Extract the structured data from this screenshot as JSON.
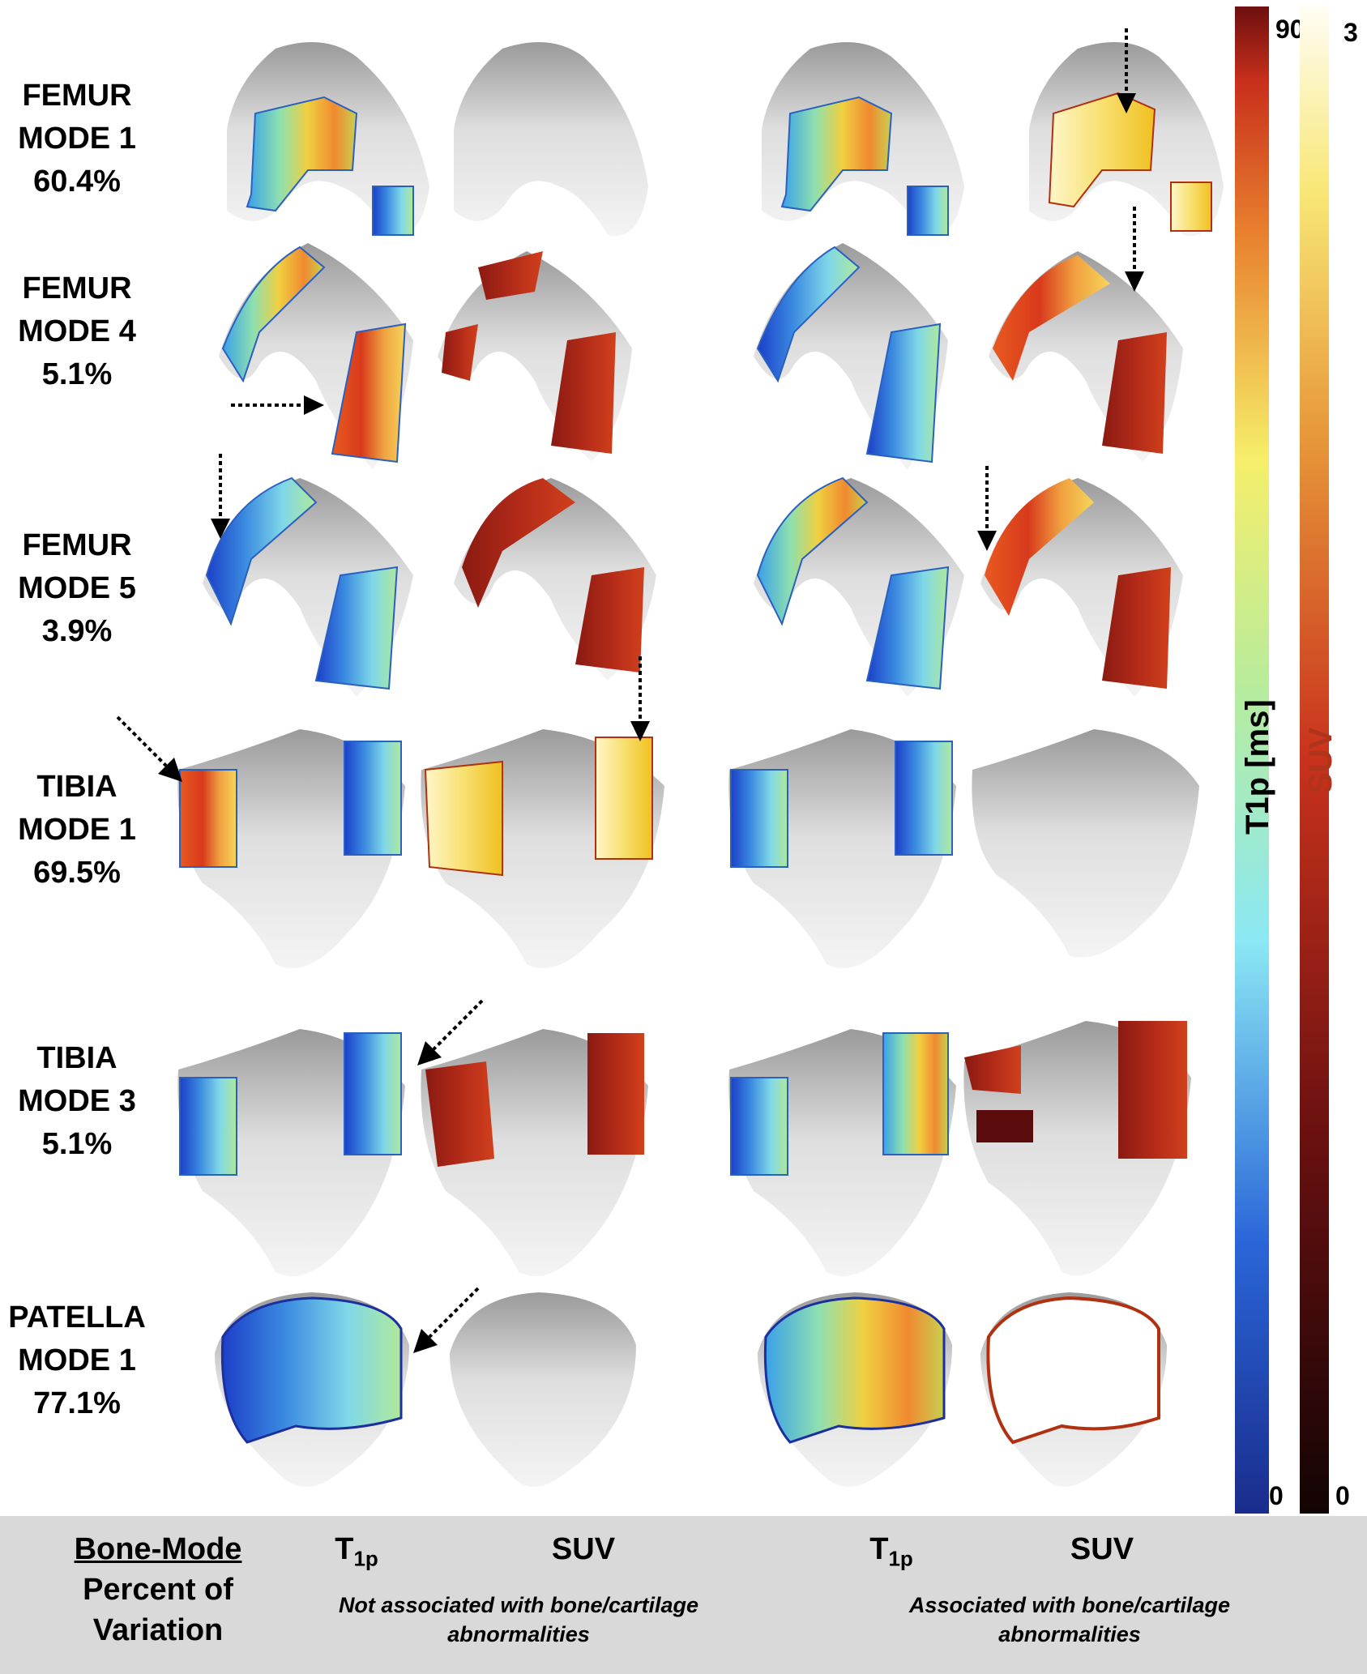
{
  "rows": [
    {
      "bone": "FEMUR",
      "mode": "MODE 1",
      "pct": "60.4%"
    },
    {
      "bone": "FEMUR",
      "mode": "MODE 4",
      "pct": "5.1%"
    },
    {
      "bone": "FEMUR",
      "mode": "MODE 5",
      "pct": "3.9%"
    },
    {
      "bone": "TIBIA",
      "mode": "MODE 1",
      "pct": "69.5%"
    },
    {
      "bone": "TIBIA",
      "mode": "MODE 3",
      "pct": "5.1%"
    },
    {
      "bone": "PATELLA",
      "mode": "MODE 1",
      "pct": "77.1%"
    }
  ],
  "colorbars": {
    "t1p": {
      "title": "T1p [ms]",
      "max": "90",
      "min": "0"
    },
    "suv": {
      "title": "SUV",
      "max": "3",
      "min": "0"
    }
  },
  "footer": {
    "bone_mode": "Bone-Mode",
    "percent_line1": "Percent of",
    "percent_line2": "Variation",
    "col_t1p_main": "T",
    "col_t1p_sub": "1p",
    "col_suv": "SUV",
    "group_not_line1": "Not associated with bone/cartilage",
    "group_not_line2": "abnormalities",
    "group_assoc_line1": "Associated with bone/cartilage",
    "group_assoc_line2": "abnormalities"
  }
}
